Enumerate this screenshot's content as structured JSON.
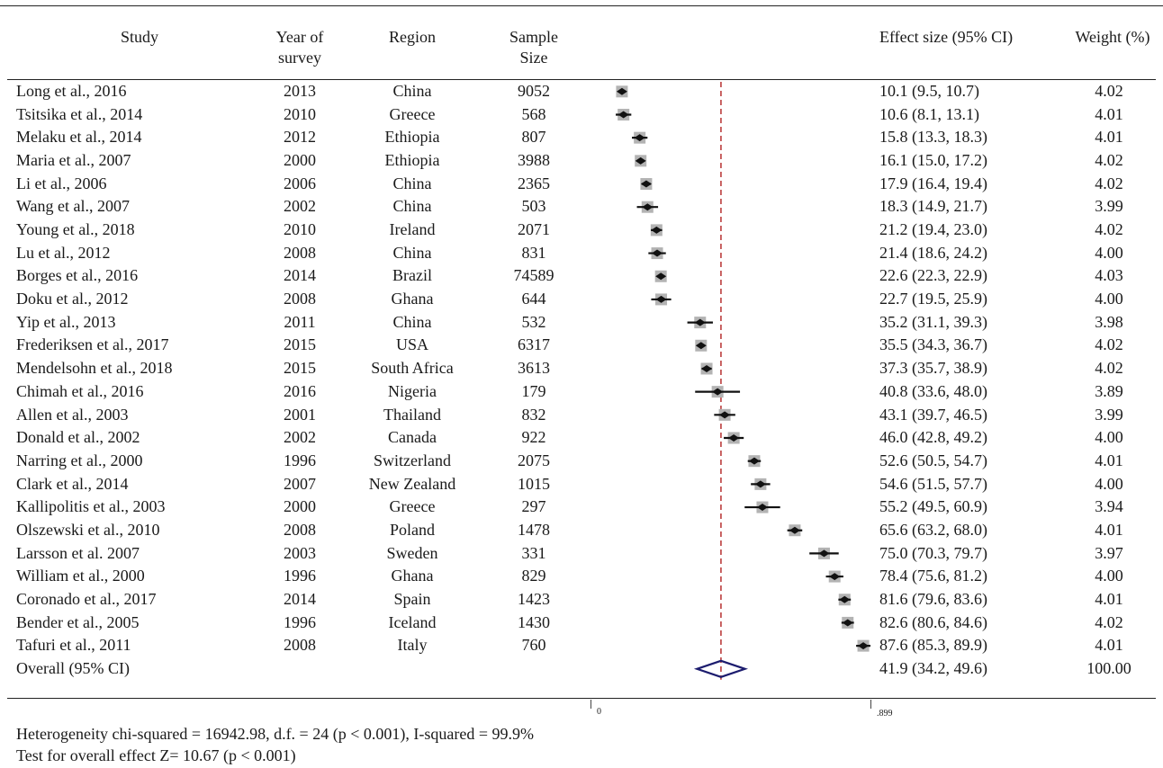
{
  "header": {
    "study": "Study",
    "year_line1": "Year of",
    "year_line2": "survey",
    "region": "Region",
    "sample_line1": "Sample",
    "sample_line2": "Size",
    "effect": "Effect size (95% CI)",
    "weight": "Weight (%)"
  },
  "rows": [
    {
      "study": "Long et al., 2016",
      "year": "2013",
      "region": "China",
      "n": "9052",
      "es": "10.1 (9.5, 10.7)",
      "w": "4.02"
    },
    {
      "study": "Tsitsika et al., 2014",
      "year": "2010",
      "region": "Greece",
      "n": "568",
      "es": "10.6 (8.1, 13.1)",
      "w": "4.01"
    },
    {
      "study": "Melaku et al., 2014",
      "year": "2012",
      "region": "Ethiopia",
      "n": "807",
      "es": "15.8 (13.3, 18.3)",
      "w": "4.01"
    },
    {
      "study": "Maria et al., 2007",
      "year": "2000",
      "region": "Ethiopia",
      "n": "3988",
      "es": "16.1 (15.0, 17.2)",
      "w": "4.02"
    },
    {
      "study": "Li et al., 2006",
      "year": "2006",
      "region": "China",
      "n": "2365",
      "es": "17.9 (16.4, 19.4)",
      "w": "4.02"
    },
    {
      "study": "Wang et al., 2007",
      "year": "2002",
      "region": "China",
      "n": "503",
      "es": "18.3 (14.9, 21.7)",
      "w": "3.99"
    },
    {
      "study": "Young et al., 2018",
      "year": "2010",
      "region": "Ireland",
      "n": "2071",
      "es": "21.2 (19.4, 23.0)",
      "w": "4.02"
    },
    {
      "study": "Lu et al., 2012",
      "year": "2008",
      "region": "China",
      "n": "831",
      "es": "21.4 (18.6, 24.2)",
      "w": "4.00"
    },
    {
      "study": "Borges et al., 2016",
      "year": "2014",
      "region": "Brazil",
      "n": "74589",
      "es": "22.6 (22.3, 22.9)",
      "w": "4.03"
    },
    {
      "study": "Doku et al., 2012",
      "year": "2008",
      "region": "Ghana",
      "n": "644",
      "es": "22.7 (19.5, 25.9)",
      "w": "4.00"
    },
    {
      "study": "Yip et al., 2013",
      "year": "2011",
      "region": "China",
      "n": "532",
      "es": "35.2 (31.1, 39.3)",
      "w": "3.98"
    },
    {
      "study": "Frederiksen et al., 2017",
      "year": "2015",
      "region": "USA",
      "n": "6317",
      "es": "35.5 (34.3, 36.7)",
      "w": "4.02"
    },
    {
      "study": "Mendelsohn et al., 2018",
      "year": "2015",
      "region": "South Africa",
      "n": "3613",
      "es": "37.3 (35.7, 38.9)",
      "w": "4.02"
    },
    {
      "study": "Chimah et al., 2016",
      "year": "2016",
      "region": "Nigeria",
      "n": "179",
      "es": "40.8 (33.6, 48.0)",
      "w": "3.89"
    },
    {
      "study": "Allen et al., 2003",
      "year": "2001",
      "region": "Thailand",
      "n": "832",
      "es": "43.1 (39.7, 46.5)",
      "w": "3.99"
    },
    {
      "study": "Donald et al., 2002",
      "year": "2002",
      "region": "Canada",
      "n": "922",
      "es": "46.0 (42.8, 49.2)",
      "w": "4.00"
    },
    {
      "study": "Narring et al., 2000",
      "year": "1996",
      "region": "Switzerland",
      "n": "2075",
      "es": "52.6 (50.5, 54.7)",
      "w": "4.01"
    },
    {
      "study": "Clark et al., 2014",
      "year": "2007",
      "region": "New Zealand",
      "n": "1015",
      "es": "54.6 (51.5, 57.7)",
      "w": "4.00"
    },
    {
      "study": "Kallipolitis et al., 2003",
      "year": "2000",
      "region": "Greece",
      "n": "297",
      "es": "55.2 (49.5, 60.9)",
      "w": "3.94"
    },
    {
      "study": "Olszewski et al., 2010",
      "year": "2008",
      "region": "Poland",
      "n": "1478",
      "es": "65.6 (63.2, 68.0)",
      "w": "4.01"
    },
    {
      "study": "Larsson et al. 2007",
      "year": "2003",
      "region": "Sweden",
      "n": "331",
      "es": "75.0 (70.3, 79.7)",
      "w": "3.97"
    },
    {
      "study": "William et al., 2000",
      "year": "1996",
      "region": "Ghana",
      "n": "829",
      "es": "78.4 (75.6, 81.2)",
      "w": "4.00"
    },
    {
      "study": "Coronado et al., 2017",
      "year": "2014",
      "region": "Spain",
      "n": "1423",
      "es": "81.6 (79.6, 83.6)",
      "w": "4.01"
    },
    {
      "study": "Bender et al., 2005",
      "year": "1996",
      "region": "Iceland",
      "n": "1430",
      "es": "82.6 (80.6, 84.6)",
      "w": "4.02"
    },
    {
      "study": "Tafuri et al., 2011",
      "year": "2008",
      "region": "Italy",
      "n": "760",
      "es": "87.6 (85.3, 89.9)",
      "w": "4.01"
    },
    {
      "study": "Overall (95% CI)",
      "year": "",
      "region": "",
      "n": "",
      "es": "41.9 (34.2, 49.6)",
      "w": "100.00"
    }
  ],
  "chart_data": {
    "type": "forest",
    "x_range": [
      0,
      89.9
    ],
    "tick_labels": [
      "0",
      ".899"
    ],
    "reference_line": 41.9,
    "studies": [
      {
        "label": "Long et al., 2016",
        "es": 10.1,
        "lo": 9.5,
        "hi": 10.7
      },
      {
        "label": "Tsitsika et al., 2014",
        "es": 10.6,
        "lo": 8.1,
        "hi": 13.1
      },
      {
        "label": "Melaku et al., 2014",
        "es": 15.8,
        "lo": 13.3,
        "hi": 18.3
      },
      {
        "label": "Maria et al., 2007",
        "es": 16.1,
        "lo": 15.0,
        "hi": 17.2
      },
      {
        "label": "Li et al., 2006",
        "es": 17.9,
        "lo": 16.4,
        "hi": 19.4
      },
      {
        "label": "Wang et al., 2007",
        "es": 18.3,
        "lo": 14.9,
        "hi": 21.7
      },
      {
        "label": "Young et al., 2018",
        "es": 21.2,
        "lo": 19.4,
        "hi": 23.0
      },
      {
        "label": "Lu et al., 2012",
        "es": 21.4,
        "lo": 18.6,
        "hi": 24.2
      },
      {
        "label": "Borges et al., 2016",
        "es": 22.6,
        "lo": 22.3,
        "hi": 22.9
      },
      {
        "label": "Doku et al., 2012",
        "es": 22.7,
        "lo": 19.5,
        "hi": 25.9
      },
      {
        "label": "Yip et al., 2013",
        "es": 35.2,
        "lo": 31.1,
        "hi": 39.3
      },
      {
        "label": "Frederiksen et al., 2017",
        "es": 35.5,
        "lo": 34.3,
        "hi": 36.7
      },
      {
        "label": "Mendelsohn et al., 2018",
        "es": 37.3,
        "lo": 35.7,
        "hi": 38.9
      },
      {
        "label": "Chimah et al., 2016",
        "es": 40.8,
        "lo": 33.6,
        "hi": 48.0
      },
      {
        "label": "Allen et al., 2003",
        "es": 43.1,
        "lo": 39.7,
        "hi": 46.5
      },
      {
        "label": "Donald et al., 2002",
        "es": 46.0,
        "lo": 42.8,
        "hi": 49.2
      },
      {
        "label": "Narring et al., 2000",
        "es": 52.6,
        "lo": 50.5,
        "hi": 54.7
      },
      {
        "label": "Clark et al., 2014",
        "es": 54.6,
        "lo": 51.5,
        "hi": 57.7
      },
      {
        "label": "Kallipolitis et al., 2003",
        "es": 55.2,
        "lo": 49.5,
        "hi": 60.9
      },
      {
        "label": "Olszewski et al., 2010",
        "es": 65.6,
        "lo": 63.2,
        "hi": 68.0
      },
      {
        "label": "Larsson et al. 2007",
        "es": 75.0,
        "lo": 70.3,
        "hi": 79.7
      },
      {
        "label": "William et al., 2000",
        "es": 78.4,
        "lo": 75.6,
        "hi": 81.2
      },
      {
        "label": "Coronado et al., 2017",
        "es": 81.6,
        "lo": 79.6,
        "hi": 83.6
      },
      {
        "label": "Bender et al., 2005",
        "es": 82.6,
        "lo": 80.6,
        "hi": 84.6
      },
      {
        "label": "Tafuri et al., 2011",
        "es": 87.6,
        "lo": 85.3,
        "hi": 89.9
      }
    ],
    "overall": {
      "es": 41.9,
      "lo": 34.2,
      "hi": 49.6
    },
    "colors": {
      "reference": "#b22222",
      "diamond": "#1c1c6e",
      "box": "#b3b3b3",
      "marker": "#111111"
    }
  },
  "footnotes": {
    "heterogeneity": "Heterogeneity chi-squared = 16942.98, d.f. = 24 (p < 0.001), I-squared = 99.9%",
    "overall_test": "Test for overall effect Z= 10.67 (p < 0.001)"
  }
}
